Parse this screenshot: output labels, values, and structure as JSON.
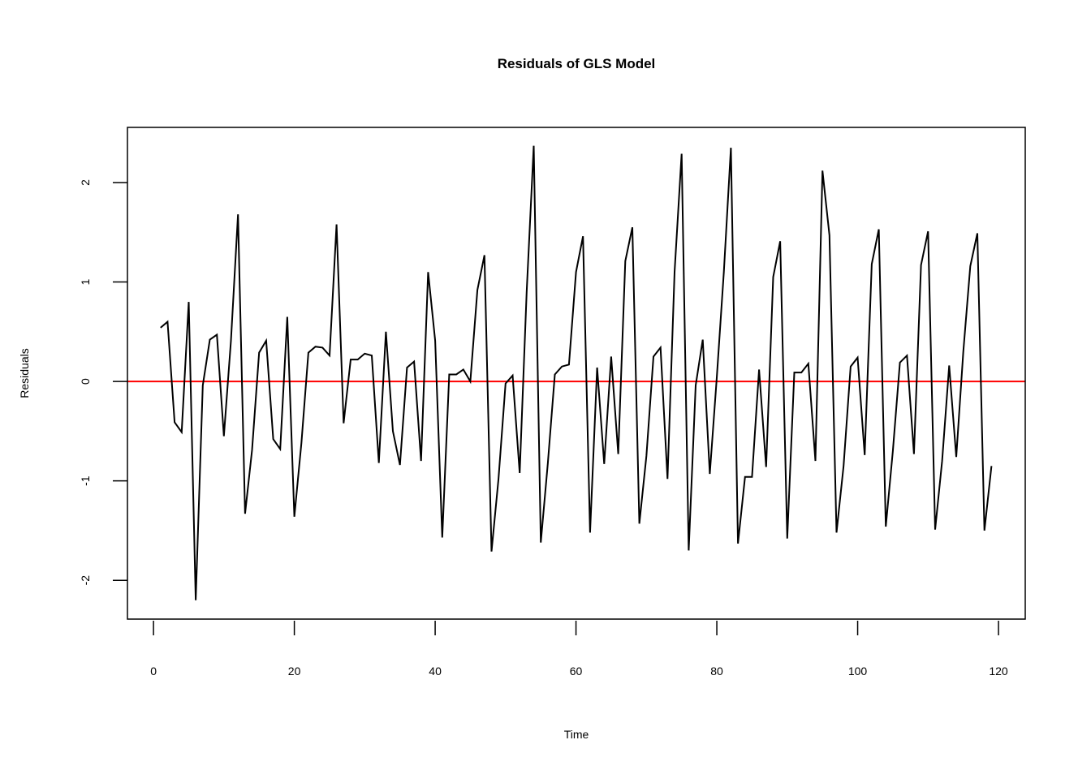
{
  "chart_data": {
    "type": "line",
    "title": "Residuals of GLS Model",
    "xlabel": "Time",
    "ylabel": "Residuals",
    "xlim": [
      -3.7,
      123.8
    ],
    "ylim": [
      -2.39,
      2.555
    ],
    "xticks": [
      0,
      20,
      40,
      60,
      80,
      100,
      120
    ],
    "yticks": [
      -2,
      -1,
      0,
      1,
      2
    ],
    "grid": false,
    "series_color": "#000000",
    "reference_line": {
      "y": 0,
      "color": "#ff0000"
    },
    "x": [
      1,
      2,
      3,
      4,
      5,
      6,
      7,
      8,
      9,
      10,
      11,
      12,
      13,
      14,
      15,
      16,
      17,
      18,
      19,
      20,
      21,
      22,
      23,
      24,
      25,
      26,
      27,
      28,
      29,
      30,
      31,
      32,
      33,
      34,
      35,
      36,
      37,
      38,
      39,
      40,
      41,
      42,
      43,
      44,
      45,
      46,
      47,
      48,
      49,
      50,
      51,
      52,
      53,
      54,
      55,
      56,
      57,
      58,
      59,
      60,
      61,
      62,
      63,
      64,
      65,
      66,
      67,
      68,
      69,
      70,
      71,
      72,
      73,
      74,
      75,
      76,
      77,
      78,
      79,
      80,
      81,
      82,
      83,
      84,
      85,
      86,
      87,
      88,
      89,
      90,
      91,
      92,
      93,
      94,
      95,
      96,
      97,
      98,
      99,
      100,
      101,
      102,
      103,
      104,
      105,
      106,
      107,
      108,
      109,
      110,
      111,
      112,
      113,
      114,
      115,
      116,
      117,
      118,
      119
    ],
    "y": [
      0.54,
      0.6,
      -0.41,
      -0.51,
      0.8,
      -2.2,
      -0.04,
      0.42,
      0.47,
      -0.55,
      0.41,
      1.68,
      -1.33,
      -0.69,
      0.29,
      0.41,
      -0.58,
      -0.68,
      0.65,
      -1.36,
      -0.62,
      0.29,
      0.35,
      0.34,
      0.26,
      1.58,
      -0.42,
      0.22,
      0.22,
      0.28,
      0.26,
      -0.82,
      0.5,
      -0.5,
      -0.84,
      0.14,
      0.2,
      -0.8,
      1.1,
      0.41,
      -1.57,
      0.07,
      0.07,
      0.12,
      0.0,
      0.92,
      1.27,
      -1.71,
      -0.98,
      -0.02,
      0.06,
      -0.92,
      0.9,
      2.37,
      -1.62,
      -0.82,
      0.07,
      0.15,
      0.17,
      1.1,
      1.46,
      -1.52,
      0.14,
      -0.83,
      0.25,
      -0.73,
      1.21,
      1.55,
      -1.43,
      -0.75,
      0.25,
      0.34,
      -0.98,
      1.1,
      2.29,
      -1.7,
      -0.04,
      0.42,
      -0.93,
      0.05,
      1.1,
      2.35,
      -1.63,
      -0.96,
      -0.96,
      0.12,
      -0.86,
      1.05,
      1.41,
      -1.58,
      0.09,
      0.09,
      0.18,
      -0.8,
      2.12,
      1.47,
      -1.52,
      -0.85,
      0.15,
      0.24,
      -0.74,
      1.18,
      1.53,
      -1.46,
      -0.7,
      0.19,
      0.26,
      -0.73,
      1.17,
      1.51,
      -1.49,
      -0.8,
      0.16,
      -0.76,
      0.3,
      1.16,
      1.49,
      -1.5,
      -0.85
    ]
  }
}
